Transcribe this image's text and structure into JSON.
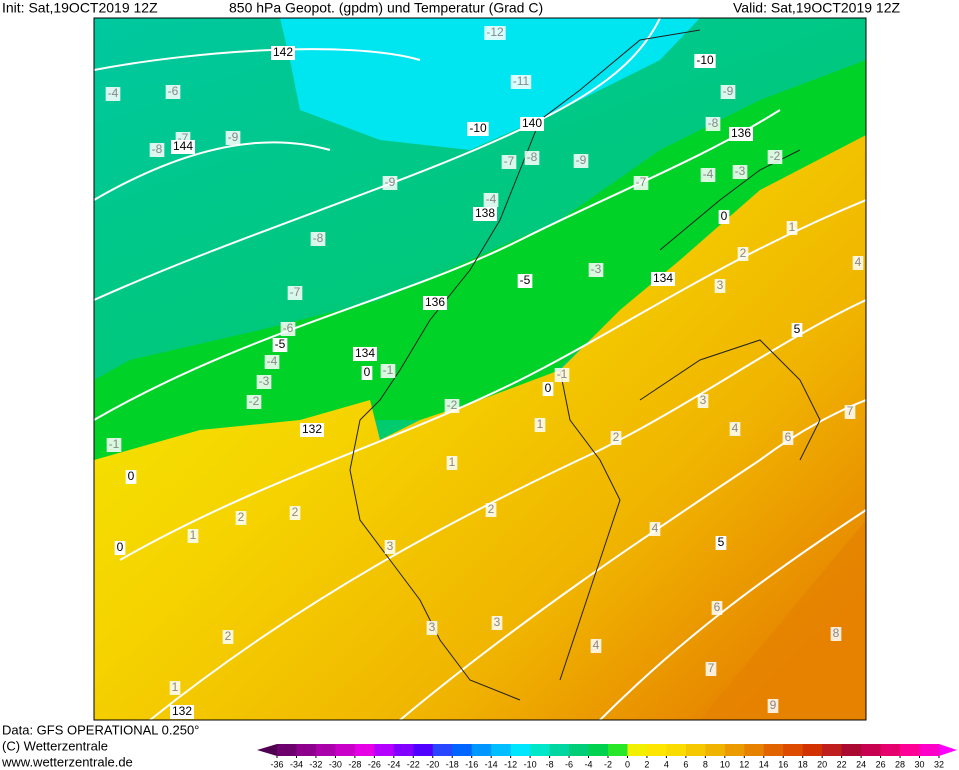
{
  "header": {
    "init": "Init: Sat,19OCT2019 12Z",
    "title": "850 hPa Geopot. (gpdm) und Temperatur (Grad C)",
    "valid": "Valid: Sat,19OCT2019 12Z"
  },
  "footer": {
    "data": "Data: GFS OPERATIONAL 0.250°",
    "copyright": "(C) Wetterzentrale",
    "url": "www.wetterzentrale.de"
  },
  "colorbar": {
    "ticks": [
      -36,
      -34,
      -32,
      -30,
      -28,
      -26,
      -24,
      -22,
      -20,
      -18,
      -16,
      -14,
      -12,
      -10,
      -8,
      -6,
      -4,
      -2,
      0,
      2,
      4,
      6,
      8,
      10,
      12,
      14,
      16,
      18,
      20,
      22,
      24,
      26,
      28,
      30,
      32
    ],
    "below_color": "#500050",
    "above_color": "#ff00ff",
    "colors": [
      "#6e006e",
      "#8c008c",
      "#aa00aa",
      "#c800c8",
      "#e600e6",
      "#b400ff",
      "#8200ff",
      "#5000ff",
      "#2846ff",
      "#0064ff",
      "#0096ff",
      "#00beff",
      "#00e6ff",
      "#00e6c8",
      "#00d7a0",
      "#00cd78",
      "#00d250",
      "#28e628",
      "#f0f000",
      "#ffe600",
      "#fadc00",
      "#f5c800",
      "#f0b400",
      "#eb9b00",
      "#e68200",
      "#e16400",
      "#dc4b00",
      "#d23200",
      "#be1e1e",
      "#aa0a32",
      "#c80050",
      "#e6006e",
      "#ff0096",
      "#ff00c8"
    ]
  },
  "map": {
    "contour_labels": [
      142,
      144,
      140,
      138,
      136,
      134,
      132,
      132,
      136,
      134,
      -10,
      -10,
      -5,
      -5,
      0,
      0,
      0,
      0,
      0,
      5,
      5
    ],
    "temperature_labels": [
      -12,
      -11,
      -4,
      -6,
      -7,
      -8,
      -9,
      -9,
      -8,
      -7,
      -6,
      -4,
      -3,
      -2,
      -1,
      -8,
      -7,
      -9,
      -7,
      -4,
      -9,
      -8,
      -4,
      -3,
      -2,
      -3,
      -1,
      -2,
      -1,
      1,
      1,
      2,
      3,
      4,
      3,
      4,
      6,
      7,
      2,
      1,
      2,
      2,
      2,
      1,
      3,
      4,
      3,
      3,
      2,
      1,
      4,
      6,
      7,
      8,
      9
    ]
  }
}
